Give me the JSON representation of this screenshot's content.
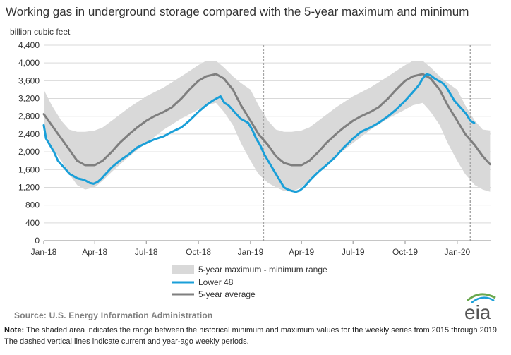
{
  "title": "Working gas in underground  storage compared with the 5-year maximum and minimum",
  "source": "Source:  U.S. Energy Information Administration",
  "note_label": "Note:",
  "note_text": " The shaded area indicates the range between the historical minimum and maximum values for the weekly series from 2015 through 2019. The dashed vertical lines indicate current and year-ago weekly periods.",
  "logo_text": "eia",
  "chart_data": {
    "type": "line",
    "ylabel": "billion cubic feet",
    "ylim": [
      0,
      4400
    ],
    "yticks": [
      0,
      400,
      800,
      1200,
      1600,
      2000,
      2400,
      2800,
      3200,
      3600,
      4000,
      4400
    ],
    "ytick_labels": [
      "0",
      "400",
      "800",
      "1,200",
      "1,600",
      "2,000",
      "2,400",
      "2,800",
      "3,200",
      "3,600",
      "4,000",
      "4,400"
    ],
    "xlim": [
      "2018-01-01",
      "2020-03-01"
    ],
    "xticks": [
      "2018-01-01",
      "2018-04-01",
      "2018-07-01",
      "2018-10-01",
      "2019-01-01",
      "2019-04-01",
      "2019-07-01",
      "2019-10-01",
      "2020-01-01"
    ],
    "xtick_labels": [
      "Jan-18",
      "Apr-18",
      "Jul-18",
      "Oct-18",
      "Jan-19",
      "Apr-19",
      "Jul-19",
      "Oct-19",
      "Jan-20"
    ],
    "grid": "horizontal",
    "legend_position": "bottom",
    "range_band": {
      "name": "5-year maximum - minimum range",
      "color": "#d9d9d9",
      "x": [
        "2018-01-01",
        "2018-01-15",
        "2018-02-01",
        "2018-02-15",
        "2018-03-01",
        "2018-03-15",
        "2018-04-01",
        "2018-04-15",
        "2018-05-01",
        "2018-06-01",
        "2018-07-01",
        "2018-08-01",
        "2018-09-01",
        "2018-10-01",
        "2018-10-15",
        "2018-11-01",
        "2018-11-15",
        "2018-12-01",
        "2018-12-15",
        "2019-01-01",
        "2019-01-15",
        "2019-02-01",
        "2019-02-15",
        "2019-03-01",
        "2019-03-15",
        "2019-04-01",
        "2019-04-15",
        "2019-05-01",
        "2019-06-01",
        "2019-07-01",
        "2019-08-01",
        "2019-09-01",
        "2019-10-01",
        "2019-10-15",
        "2019-11-01",
        "2019-11-15",
        "2019-12-01",
        "2019-12-15",
        "2020-01-01",
        "2020-01-15",
        "2020-02-01",
        "2020-02-15",
        "2020-02-28"
      ],
      "upper": [
        3400,
        3050,
        2700,
        2500,
        2450,
        2450,
        2480,
        2550,
        2700,
        3000,
        3250,
        3450,
        3700,
        3950,
        4050,
        4050,
        3900,
        3700,
        3550,
        3400,
        3050,
        2700,
        2500,
        2450,
        2450,
        2480,
        2550,
        2700,
        3000,
        3250,
        3450,
        3700,
        3950,
        4050,
        4050,
        3900,
        3700,
        3550,
        3400,
        3050,
        2700,
        2500,
        2480
      ],
      "lower": [
        2500,
        2100,
        1800,
        1500,
        1250,
        1150,
        1200,
        1350,
        1550,
        1900,
        2200,
        2500,
        2750,
        2950,
        3050,
        3100,
        2900,
        2600,
        2200,
        1800,
        1500,
        1300,
        1200,
        1120,
        1100,
        1200,
        1350,
        1550,
        1900,
        2200,
        2500,
        2750,
        2950,
        3050,
        3100,
        2900,
        2600,
        2200,
        1800,
        1500,
        1250,
        1150,
        1100
      ]
    },
    "series": [
      {
        "name": "Lower 48",
        "color": "#1a9fd8",
        "x": [
          "2018-01-01",
          "2018-01-05",
          "2018-01-12",
          "2018-01-19",
          "2018-01-26",
          "2018-02-02",
          "2018-02-09",
          "2018-02-16",
          "2018-02-23",
          "2018-03-02",
          "2018-03-09",
          "2018-03-16",
          "2018-03-23",
          "2018-03-30",
          "2018-04-06",
          "2018-04-13",
          "2018-04-20",
          "2018-05-01",
          "2018-05-15",
          "2018-06-01",
          "2018-06-15",
          "2018-07-01",
          "2018-07-15",
          "2018-08-01",
          "2018-08-15",
          "2018-09-01",
          "2018-09-15",
          "2018-10-01",
          "2018-10-15",
          "2018-10-26",
          "2018-11-02",
          "2018-11-09",
          "2018-11-16",
          "2018-11-23",
          "2018-11-30",
          "2018-12-07",
          "2018-12-14",
          "2018-12-21",
          "2018-12-28",
          "2019-01-04",
          "2019-01-11",
          "2019-01-18",
          "2019-01-25",
          "2019-02-01",
          "2019-02-08",
          "2019-02-15",
          "2019-02-22",
          "2019-03-01",
          "2019-03-08",
          "2019-03-15",
          "2019-03-22",
          "2019-03-29",
          "2019-04-05",
          "2019-04-12",
          "2019-04-19",
          "2019-05-01",
          "2019-05-15",
          "2019-06-01",
          "2019-06-15",
          "2019-07-01",
          "2019-07-15",
          "2019-08-01",
          "2019-08-15",
          "2019-09-01",
          "2019-09-15",
          "2019-10-01",
          "2019-10-15",
          "2019-10-25",
          "2019-11-01",
          "2019-11-08",
          "2019-11-15",
          "2019-11-22",
          "2019-11-29",
          "2019-12-06",
          "2019-12-13",
          "2019-12-20",
          "2019-12-27",
          "2020-01-03",
          "2020-01-10",
          "2020-01-17",
          "2020-01-24",
          "2020-01-31"
        ],
        "values": [
          2600,
          2300,
          2150,
          2000,
          1800,
          1700,
          1600,
          1500,
          1450,
          1400,
          1380,
          1350,
          1300,
          1280,
          1320,
          1400,
          1500,
          1650,
          1800,
          1950,
          2100,
          2200,
          2280,
          2350,
          2450,
          2550,
          2700,
          2900,
          3050,
          3150,
          3200,
          3250,
          3100,
          3050,
          2950,
          2850,
          2750,
          2700,
          2650,
          2500,
          2300,
          2150,
          1950,
          1800,
          1650,
          1500,
          1350,
          1200,
          1150,
          1120,
          1100,
          1130,
          1200,
          1300,
          1400,
          1550,
          1700,
          1900,
          2100,
          2300,
          2450,
          2550,
          2650,
          2800,
          2950,
          3150,
          3350,
          3500,
          3650,
          3750,
          3720,
          3650,
          3600,
          3550,
          3450,
          3300,
          3150,
          3050,
          2950,
          2850,
          2700,
          2650
        ]
      },
      {
        "name": "5-year average",
        "color": "#7f7f7f",
        "x": [
          "2018-01-01",
          "2018-01-15",
          "2018-02-01",
          "2018-02-15",
          "2018-03-01",
          "2018-03-15",
          "2018-04-01",
          "2018-04-15",
          "2018-05-01",
          "2018-05-15",
          "2018-06-01",
          "2018-06-15",
          "2018-07-01",
          "2018-07-15",
          "2018-08-01",
          "2018-08-15",
          "2018-09-01",
          "2018-09-15",
          "2018-10-01",
          "2018-10-15",
          "2018-11-01",
          "2018-11-15",
          "2018-12-01",
          "2018-12-15",
          "2019-01-01",
          "2019-01-15",
          "2019-02-01",
          "2019-02-15",
          "2019-03-01",
          "2019-03-15",
          "2019-04-01",
          "2019-04-15",
          "2019-05-01",
          "2019-05-15",
          "2019-06-01",
          "2019-06-15",
          "2019-07-01",
          "2019-07-15",
          "2019-08-01",
          "2019-08-15",
          "2019-09-01",
          "2019-09-15",
          "2019-10-01",
          "2019-10-15",
          "2019-11-01",
          "2019-11-15",
          "2019-12-01",
          "2019-12-15",
          "2020-01-01",
          "2020-01-15",
          "2020-02-01",
          "2020-02-15",
          "2020-02-28"
        ],
        "values": [
          2850,
          2600,
          2300,
          2050,
          1800,
          1700,
          1700,
          1800,
          2000,
          2200,
          2400,
          2550,
          2700,
          2800,
          2900,
          3000,
          3200,
          3400,
          3600,
          3700,
          3750,
          3650,
          3400,
          3050,
          2700,
          2400,
          2150,
          1900,
          1750,
          1700,
          1700,
          1800,
          2000,
          2200,
          2400,
          2550,
          2700,
          2800,
          2900,
          3000,
          3200,
          3400,
          3600,
          3700,
          3750,
          3650,
          3400,
          3050,
          2700,
          2400,
          2150,
          1900,
          1720
        ]
      }
    ],
    "vertical_markers": [
      "2019-01-24",
      "2020-01-24"
    ]
  }
}
